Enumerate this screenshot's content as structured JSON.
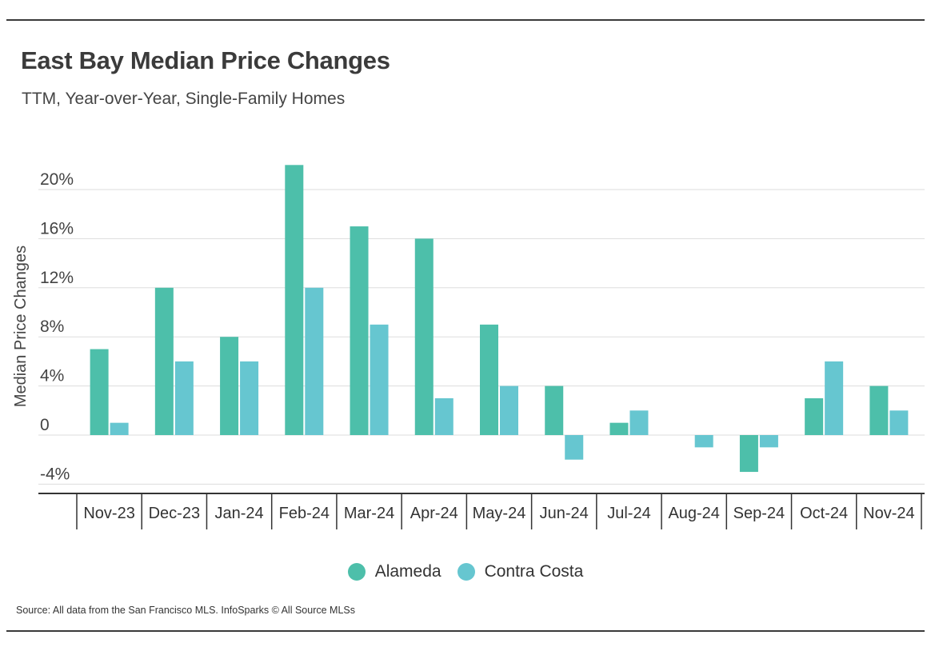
{
  "title": "East Bay Median Price Changes",
  "subtitle": "TTM, Year-over-Year, Single-Family Homes",
  "source": "Source:  All data from the San Francisco MLS. InfoSparks © All Source MLSs",
  "colors": {
    "alameda": "#4dbfaa",
    "contra_costa": "#66c6d0",
    "grid": "#dddddd",
    "axis": "#333333"
  },
  "chart_data": {
    "type": "bar",
    "ylabel": "Median Price Changes",
    "ylim": [
      -4,
      22
    ],
    "yticks": [
      {
        "value": 20,
        "label": "20%"
      },
      {
        "value": 16,
        "label": "16%"
      },
      {
        "value": 12,
        "label": "12%"
      },
      {
        "value": 8,
        "label": "8%"
      },
      {
        "value": 4,
        "label": "4%"
      },
      {
        "value": 0,
        "label": "0"
      },
      {
        "value": -4,
        "label": "-4%"
      }
    ],
    "grid": true,
    "legend_position": "bottom",
    "categories": [
      "Nov-23",
      "Dec-23",
      "Jan-24",
      "Feb-24",
      "Mar-24",
      "Apr-24",
      "May-24",
      "Jun-24",
      "Jul-24",
      "Aug-24",
      "Sep-24",
      "Oct-24",
      "Nov-24"
    ],
    "series": [
      {
        "name": "Alameda",
        "color_key": "alameda",
        "values": [
          7,
          12,
          8,
          22,
          17,
          16,
          9,
          4,
          1,
          0,
          -3,
          3,
          4
        ]
      },
      {
        "name": "Contra Costa",
        "color_key": "contra_costa",
        "values": [
          1,
          6,
          6,
          12,
          9,
          3,
          4,
          -2,
          2,
          -1,
          -1,
          6,
          2
        ]
      }
    ]
  }
}
